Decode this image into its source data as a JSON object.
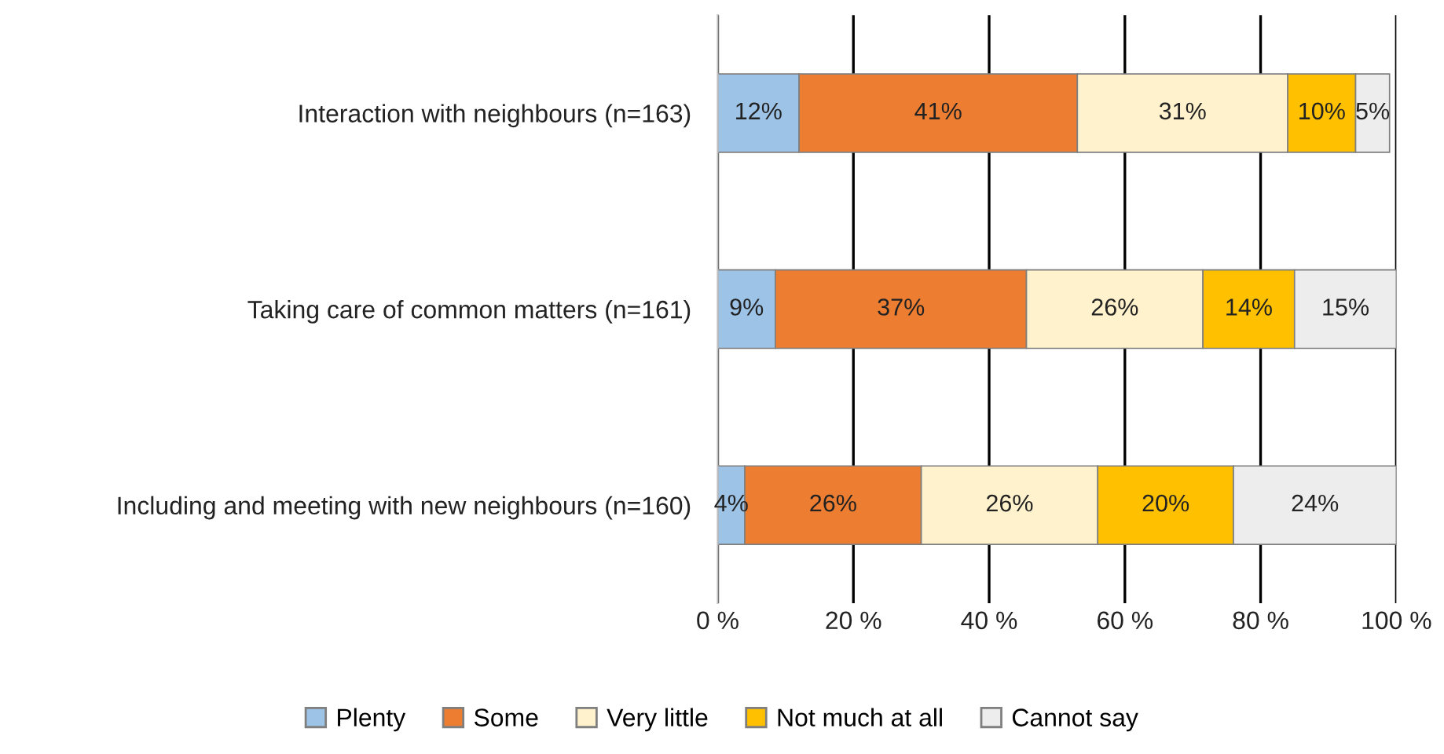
{
  "chart_data": {
    "type": "bar",
    "orientation": "horizontal",
    "stacked": true,
    "categories": [
      "Interaction with neighbours (n=163)",
      "Taking care of common matters (n=161)",
      "Including and meeting with new neighbours (n=160)"
    ],
    "series": [
      {
        "name": "Plenty",
        "color": "#9dc3e6",
        "values": [
          12,
          8.5,
          4
        ],
        "value_labels": [
          "12%",
          "9%",
          "4%"
        ]
      },
      {
        "name": "Some",
        "color": "#ed7d31",
        "values": [
          41,
          37,
          26
        ],
        "value_labels": [
          "41%",
          "37%",
          "26%"
        ]
      },
      {
        "name": "Very little",
        "color": "#fff2cc",
        "values": [
          31,
          26,
          26
        ],
        "value_labels": [
          "31%",
          "26%",
          "26%"
        ]
      },
      {
        "name": "Not much at all",
        "color": "#ffc000",
        "values": [
          10,
          13.5,
          20
        ],
        "value_labels": [
          "10%",
          "14%",
          "20%"
        ]
      },
      {
        "name": "Cannot say",
        "color": "#ededed",
        "values": [
          5,
          15,
          24
        ],
        "value_labels": [
          "5%",
          "15%",
          "24%"
        ]
      }
    ],
    "xlim": [
      0,
      100
    ],
    "xticks": [
      {
        "value": 0,
        "label": "0 %"
      },
      {
        "value": 20,
        "label": "20 %"
      },
      {
        "value": 40,
        "label": "40 %"
      },
      {
        "value": 60,
        "label": "60 %"
      },
      {
        "value": 80,
        "label": "80 %"
      },
      {
        "value": 100,
        "label": "100 %"
      }
    ],
    "grid": "x",
    "legend": "bottom"
  }
}
